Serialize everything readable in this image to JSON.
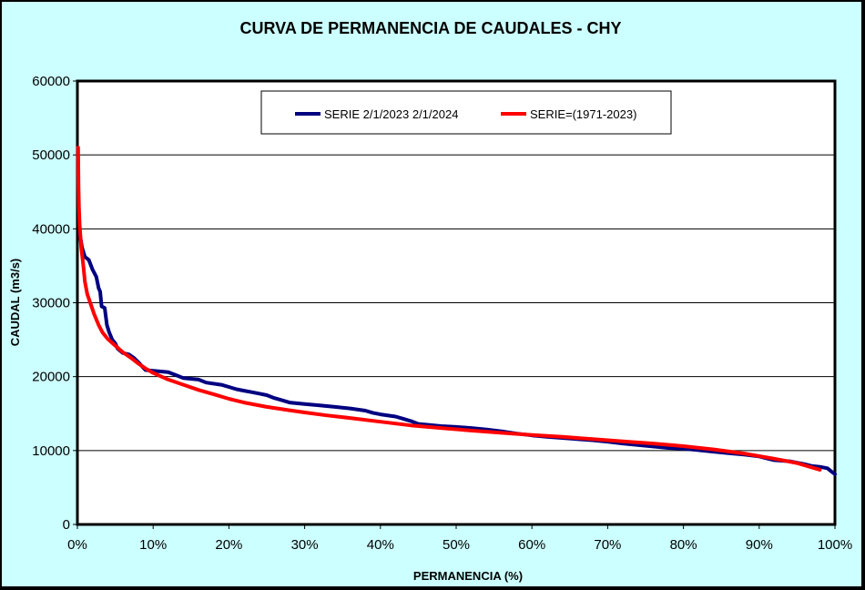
{
  "chart_data": {
    "type": "line",
    "title": "CURVA DE PERMANENCIA DE CAUDALES - CHY",
    "xlabel": "PERMANENCIA (%)",
    "ylabel": "CAUDAL  (m3/s)",
    "xlim": [
      0,
      100
    ],
    "ylim": [
      0,
      60000
    ],
    "x_ticks": [
      "0%",
      "10%",
      "20%",
      "30%",
      "40%",
      "50%",
      "60%",
      "70%",
      "80%",
      "90%",
      "100%"
    ],
    "y_ticks": [
      "0",
      "10000",
      "20000",
      "30000",
      "40000",
      "50000",
      "60000"
    ],
    "grid": "horizontal",
    "legend_position": "top-center",
    "background_color": "#ccffff",
    "plot_color": "#ffffff",
    "series": [
      {
        "name": "SERIE 2/1/2023 2/1/2024",
        "color": "#000080",
        "points": [
          [
            0.3,
            39500
          ],
          [
            0.6,
            37500
          ],
          [
            1.0,
            36200
          ],
          [
            1.5,
            35800
          ],
          [
            2.0,
            34500
          ],
          [
            2.5,
            33500
          ],
          [
            2.8,
            32000
          ],
          [
            3.0,
            31500
          ],
          [
            3.2,
            29500
          ],
          [
            3.6,
            29300
          ],
          [
            3.9,
            27000
          ],
          [
            4.2,
            26000
          ],
          [
            4.6,
            25000
          ],
          [
            5.0,
            24500
          ],
          [
            5.3,
            23800
          ],
          [
            6.0,
            23200
          ],
          [
            6.8,
            23000
          ],
          [
            7.5,
            22500
          ],
          [
            8.2,
            21800
          ],
          [
            8.7,
            21200
          ],
          [
            9.0,
            20900
          ],
          [
            10,
            20800
          ],
          [
            11,
            20700
          ],
          [
            12,
            20600
          ],
          [
            13,
            20200
          ],
          [
            14,
            19800
          ],
          [
            16,
            19600
          ],
          [
            17,
            19200
          ],
          [
            19,
            18900
          ],
          [
            20,
            18600
          ],
          [
            21,
            18300
          ],
          [
            22,
            18100
          ],
          [
            23,
            17900
          ],
          [
            24,
            17700
          ],
          [
            25,
            17500
          ],
          [
            26,
            17100
          ],
          [
            27,
            16800
          ],
          [
            28,
            16500
          ],
          [
            30,
            16300
          ],
          [
            32,
            16100
          ],
          [
            34,
            15900
          ],
          [
            36,
            15700
          ],
          [
            38,
            15400
          ],
          [
            39,
            15100
          ],
          [
            40,
            14900
          ],
          [
            42,
            14600
          ],
          [
            43,
            14300
          ],
          [
            44,
            14000
          ],
          [
            45,
            13600
          ],
          [
            46,
            13500
          ],
          [
            48,
            13300
          ],
          [
            50,
            13200
          ],
          [
            52,
            13050
          ],
          [
            54,
            12850
          ],
          [
            56,
            12600
          ],
          [
            58,
            12300
          ],
          [
            60,
            12050
          ],
          [
            62,
            11850
          ],
          [
            64,
            11700
          ],
          [
            66,
            11550
          ],
          [
            68,
            11400
          ],
          [
            70,
            11200
          ],
          [
            72,
            10950
          ],
          [
            74,
            10750
          ],
          [
            76,
            10550
          ],
          [
            78,
            10350
          ],
          [
            80,
            10250
          ],
          [
            82,
            10050
          ],
          [
            84,
            9850
          ],
          [
            86,
            9650
          ],
          [
            88,
            9450
          ],
          [
            90,
            9200
          ],
          [
            91,
            8950
          ],
          [
            92,
            8700
          ],
          [
            94,
            8550
          ],
          [
            96,
            8150
          ],
          [
            97,
            7900
          ],
          [
            98,
            7800
          ],
          [
            99,
            7600
          ],
          [
            99.5,
            7200
          ],
          [
            100,
            6800
          ]
        ]
      },
      {
        "name": "SERIE=(1971-2023)",
        "color": "#ff0000",
        "points": [
          [
            0.1,
            51000
          ],
          [
            0.15,
            46000
          ],
          [
            0.2,
            43000
          ],
          [
            0.3,
            40500
          ],
          [
            0.5,
            37500
          ],
          [
            0.8,
            34800
          ],
          [
            1.0,
            32800
          ],
          [
            1.3,
            31200
          ],
          [
            1.7,
            30000
          ],
          [
            2.2,
            28500
          ],
          [
            2.8,
            27000
          ],
          [
            3.3,
            26000
          ],
          [
            4.0,
            25100
          ],
          [
            5.0,
            24200
          ],
          [
            6.0,
            23300
          ],
          [
            7.0,
            22600
          ],
          [
            8.0,
            21800
          ],
          [
            9.0,
            21100
          ],
          [
            10,
            20500
          ],
          [
            12,
            19600
          ],
          [
            14,
            18900
          ],
          [
            16,
            18200
          ],
          [
            18,
            17600
          ],
          [
            20,
            17000
          ],
          [
            22,
            16500
          ],
          [
            25,
            15900
          ],
          [
            28,
            15450
          ],
          [
            30,
            15150
          ],
          [
            33,
            14750
          ],
          [
            36,
            14400
          ],
          [
            40,
            13900
          ],
          [
            44,
            13400
          ],
          [
            48,
            13050
          ],
          [
            52,
            12700
          ],
          [
            56,
            12400
          ],
          [
            60,
            12100
          ],
          [
            64,
            11850
          ],
          [
            68,
            11550
          ],
          [
            72,
            11250
          ],
          [
            76,
            10950
          ],
          [
            80,
            10600
          ],
          [
            84,
            10150
          ],
          [
            88,
            9600
          ],
          [
            92,
            8900
          ],
          [
            95,
            8300
          ],
          [
            97,
            7700
          ],
          [
            98,
            7400
          ]
        ]
      }
    ]
  }
}
